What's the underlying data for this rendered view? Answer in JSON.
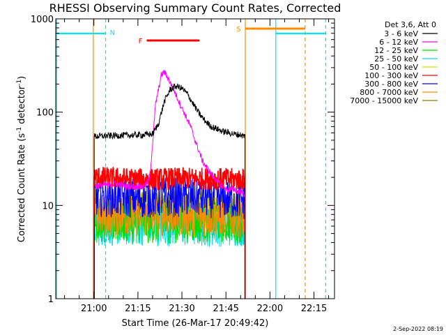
{
  "chart_data": {
    "type": "line",
    "title": "RHESSI Observing Summary Count Rates, Corrected",
    "xlabel": "Start Time (26-Mar-17 20:49:42)",
    "ylabel_main": "Corrected Count Rate (s",
    "ylabel_sup1": "-1",
    "ylabel_mid": " detector",
    "ylabel_sup2": "-1",
    "ylabel_end": ")",
    "yscale": "log",
    "ylim": [
      1,
      1000
    ],
    "xlim_minutes": [
      0,
      95
    ],
    "x_ticks": [
      {
        "m": 13,
        "label": "21:00"
      },
      {
        "m": 28,
        "label": "21:15"
      },
      {
        "m": 43,
        "label": "21:30"
      },
      {
        "m": 58,
        "label": "21:45"
      },
      {
        "m": 73,
        "label": "22:00"
      },
      {
        "m": 88,
        "label": "22:15"
      }
    ],
    "y_ticks": [
      {
        "v": 1,
        "label": "1"
      },
      {
        "v": 10,
        "label": "10"
      },
      {
        "v": 100,
        "label": "100"
      },
      {
        "v": 1000,
        "label": "1000"
      }
    ],
    "legend_header": "Det 3,6, Att 0",
    "series": [
      {
        "name": "3 - 6 keV",
        "color": "#000000",
        "x": [
          13.1,
          20,
          30,
          32,
          33,
          35,
          37,
          39,
          41,
          43,
          45,
          47,
          49,
          51,
          53,
          55,
          57,
          59,
          61,
          63,
          64.5
        ],
        "y": [
          55,
          56,
          57,
          58,
          58,
          75,
          130,
          175,
          190,
          180,
          155,
          120,
          95,
          80,
          70,
          66,
          62,
          60,
          58,
          57,
          55
        ]
      },
      {
        "name": "6 - 12 keV",
        "color": "#ff00ff",
        "x": [
          13.1,
          20,
          25,
          30,
          31,
          32,
          33,
          34,
          36,
          37,
          38,
          40,
          42,
          44,
          46,
          47,
          48,
          50,
          52,
          54,
          56,
          57,
          58,
          59,
          60,
          61,
          62,
          63,
          64.5
        ],
        "y": [
          16,
          17,
          16,
          16,
          17,
          20,
          45,
          120,
          250,
          270,
          240,
          180,
          130,
          95,
          70,
          55,
          45,
          30,
          24,
          20,
          17,
          16,
          15,
          14.5,
          15,
          15,
          14,
          14,
          13
        ]
      },
      {
        "name": "12 - 25 keV",
        "color": "#00dd00",
        "x": [
          13.1,
          30,
          45,
          64.5
        ],
        "y": [
          6.5,
          6.4,
          6.6,
          6.5
        ]
      },
      {
        "name": "25 - 50 keV",
        "color": "#00dddd",
        "x": [
          13.1,
          30,
          45,
          64.5
        ],
        "y": [
          6.0,
          6.1,
          5.9,
          6.0
        ]
      },
      {
        "name": "50 - 100 keV",
        "color": "#dddd00",
        "x": [
          13.1,
          30,
          45,
          64.5
        ],
        "y": [
          9.0,
          8.9,
          9.1,
          9.0
        ]
      },
      {
        "name": "100 - 300 keV",
        "color": "#ff0000",
        "x": [
          13.1,
          30,
          45,
          64.5
        ],
        "y": [
          20,
          19,
          19.5,
          19
        ]
      },
      {
        "name": "300 - 800 keV",
        "color": "#0000ff",
        "x": [
          13.1,
          30,
          45,
          64.5
        ],
        "y": [
          12.5,
          12,
          12.5,
          11.5
        ]
      },
      {
        "name": "800 - 7000 keV",
        "color": "#ff8c00",
        "x": [
          13.1,
          30,
          45,
          64.5
        ],
        "y": [
          7.8,
          7.6,
          7.7,
          7.5
        ]
      },
      {
        "name": "7000 - 15000 keV",
        "color": "#808000",
        "x": [
          13.1,
          30,
          45,
          64.5
        ],
        "y": [
          8.5,
          8.4,
          8.6,
          8.5
        ]
      }
    ],
    "annotations": [
      {
        "type": "span",
        "label": "N",
        "color": "#00e5ee",
        "start": 17,
        "end": 17,
        "note": "night end (dashed)"
      },
      {
        "type": "span",
        "label": "",
        "color": "#00e5ee",
        "start": 0.3,
        "end": 17,
        "note": "night bar"
      },
      {
        "type": "span",
        "label": "F",
        "color": "#ff0000",
        "start": 31,
        "end": 49,
        "note": "flare"
      },
      {
        "type": "span",
        "label": "S",
        "color": "#ff8c00",
        "start": 64.5,
        "end": 85,
        "note": "SAA"
      },
      {
        "type": "span",
        "label": "",
        "color": "#00e5ee",
        "start": 75,
        "end": 92,
        "note": "night bar 2"
      }
    ],
    "vlines": [
      {
        "m": 0.3,
        "color": "#00e5ee",
        "dash": false
      },
      {
        "m": 17,
        "color": "#00e5ee",
        "dash": true
      },
      {
        "m": 12.8,
        "color": "#ff8c00",
        "dash": false
      },
      {
        "m": 64.6,
        "color": "#ff8c00",
        "dash": false
      },
      {
        "m": 85,
        "color": "#ff8c00",
        "dash": true
      },
      {
        "m": 75,
        "color": "#00e5ee",
        "dash": false
      },
      {
        "m": 92,
        "color": "#00e5ee",
        "dash": true
      }
    ],
    "footer_date": "2-Sep-2022 08:19"
  }
}
